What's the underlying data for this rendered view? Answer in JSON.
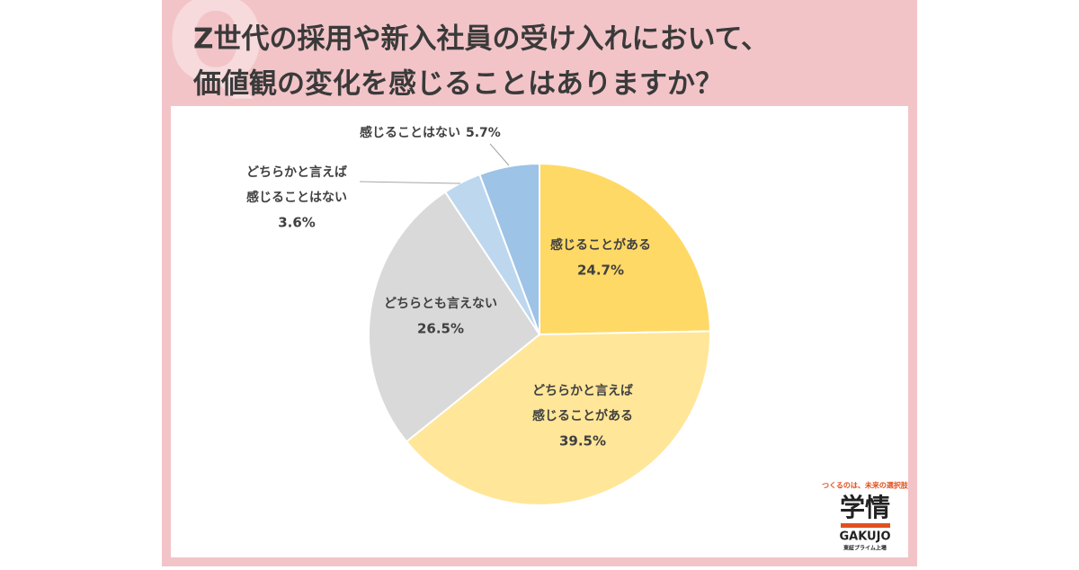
{
  "chart_data": {
    "type": "pie",
    "title": [
      "Z世代の採用や新入社員の受け入れにおいて、",
      "価値観の変化を感じることはありますか？"
    ],
    "categories": [
      [
        "感じることがある"
      ],
      [
        "どちらかと言えば",
        "感じることがある"
      ],
      [
        "どちらとも言えない"
      ],
      [
        "どちらかと言えば",
        "感じることはない"
      ],
      [
        "感じることはない"
      ]
    ],
    "values": [
      24.7,
      39.5,
      26.5,
      3.6,
      5.7
    ],
    "value_labels": [
      "24.7%",
      "39.5%",
      "26.5%",
      "3.6%",
      "5.7%"
    ],
    "colors": [
      "#FFD966",
      "#FFE699",
      "#D9D9D9",
      "#BDD7EE",
      "#9DC3E6"
    ]
  },
  "logo": {
    "tagline": "つくるのは、未来の選択肢",
    "name": "学情",
    "roman": "GAKUJO",
    "note": "東証プライム上場"
  }
}
